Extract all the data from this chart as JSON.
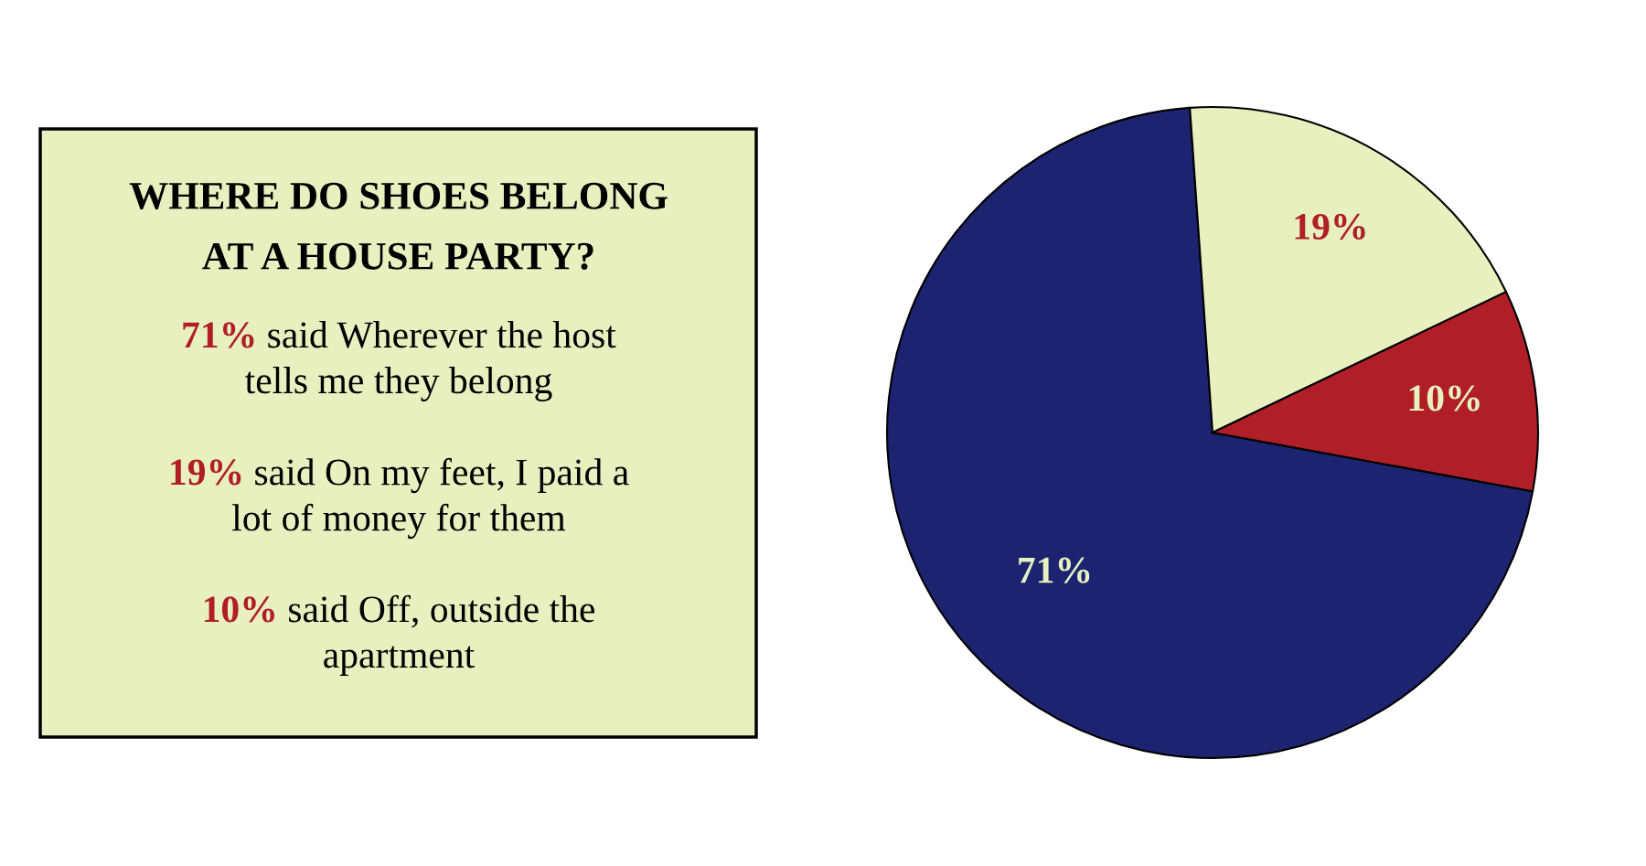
{
  "chart_data": {
    "type": "pie",
    "title": "WHERE DO SHOES BELONG AT A HOUSE PARTY?",
    "categories": [
      null,
      null,
      null
    ],
    "values": [
      71,
      19,
      10
    ],
    "colors": [
      "#1c2370",
      "#e8f0c0",
      "#b01e28"
    ],
    "value_labels": [
      "71%",
      "19%",
      "10%"
    ],
    "annotations": [
      "71% said Wherever the host tells me they belong",
      "19% said On my feet, I paid a lot of money for them",
      "10% said Off, outside the apartment"
    ]
  }
}
